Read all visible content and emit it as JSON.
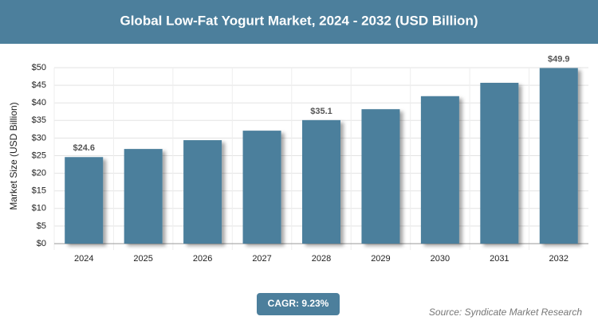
{
  "chart_data": {
    "type": "bar",
    "title": "Global Low-Fat Yogurt Market, 2024 - 2032 (USD Billion)",
    "y_label": "Market Size (USD Billion)",
    "categories": [
      "2024",
      "2025",
      "2026",
      "2027",
      "2028",
      "2029",
      "2030",
      "2031",
      "2032"
    ],
    "values": [
      24.6,
      26.9,
      29.4,
      32.1,
      35.1,
      38.2,
      41.9,
      45.7,
      49.9
    ],
    "value_labels": [
      "$24.6",
      null,
      null,
      null,
      "$35.1",
      null,
      null,
      null,
      "$49.9"
    ],
    "color": "#4c7f9c",
    "ylim": [
      0,
      50
    ],
    "yticks": [
      {
        "value": 0,
        "label": "$0"
      },
      {
        "value": 5,
        "label": "$5"
      },
      {
        "value": 10,
        "label": "$10"
      },
      {
        "value": 15,
        "label": "$15"
      },
      {
        "value": 20,
        "label": "$20"
      },
      {
        "value": 25,
        "label": "$25"
      },
      {
        "value": 30,
        "label": "$30"
      },
      {
        "value": 35,
        "label": "$35"
      },
      {
        "value": 40,
        "label": "$40"
      },
      {
        "value": 45,
        "label": "$45"
      },
      {
        "value": 50,
        "label": "$50"
      }
    ],
    "grid": true,
    "cagr": "CAGR: 9.23%",
    "source": "Source: Syndicate Market Research"
  }
}
